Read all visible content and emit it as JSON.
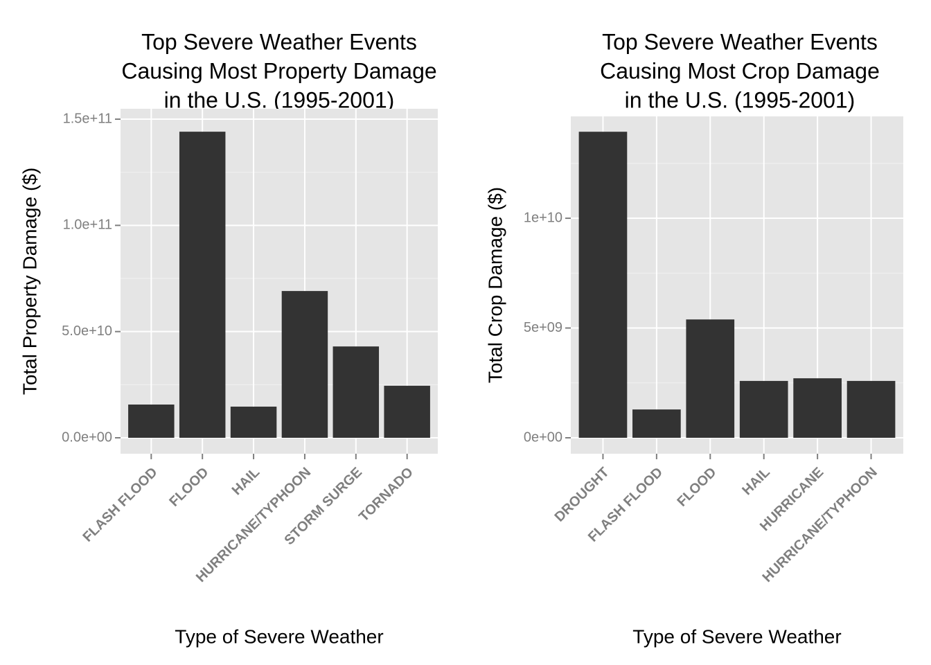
{
  "chart_data": [
    {
      "type": "bar",
      "title": [
        "Top Severe Weather Events",
        "Causing Most Property Damage",
        "in the U.S. (1995-2001)"
      ],
      "x_label": "Type of Severe Weather",
      "y_label": "Total Property Damage ($)",
      "categories": [
        "FLASH FLOOD",
        "FLOOD",
        "HAIL",
        "HURRICANE/TYPHOON",
        "STORM SURGE",
        "TORNADO"
      ],
      "values": [
        15650000000,
        144100000000,
        14670000000,
        69100000000,
        43000000000,
        24500000000
      ],
      "color": "#333333",
      "ylim": [
        -7500000000,
        154900000000
      ],
      "yticks": [
        {
          "value": 0,
          "label": "0.0e+00"
        },
        {
          "value": 50000000000,
          "label": "5.0e+10"
        },
        {
          "value": 100000000000,
          "label": "1.0e+11"
        },
        {
          "value": 150000000000,
          "label": "1.5e+11"
        }
      ],
      "minor_yticks": [
        25000000000,
        75000000000,
        125000000000
      ],
      "grid": true
    },
    {
      "type": "bar",
      "title": [
        "Top Severe Weather Events",
        "Causing Most Crop Damage",
        "in the U.S. (1995-2001)"
      ],
      "x_label": "Type of Severe Weather",
      "y_label": "Total Crop Damage ($)",
      "categories": [
        "DROUGHT",
        "FLASH FLOOD",
        "FLOOD",
        "HAIL",
        "HURRICANE",
        "HURRICANE/TYPHOON"
      ],
      "values": [
        13940000000,
        1290000000,
        5390000000,
        2590000000,
        2710000000,
        2590000000
      ],
      "color": "#333333",
      "ylim": [
        -726000000,
        14640000000
      ],
      "yticks": [
        {
          "value": 0,
          "label": "0e+00"
        },
        {
          "value": 5000000000,
          "label": "5e+09"
        },
        {
          "value": 10000000000,
          "label": "1e+10"
        }
      ],
      "minor_yticks": [
        2500000000,
        7500000000,
        12500000000
      ],
      "grid": true
    }
  ]
}
